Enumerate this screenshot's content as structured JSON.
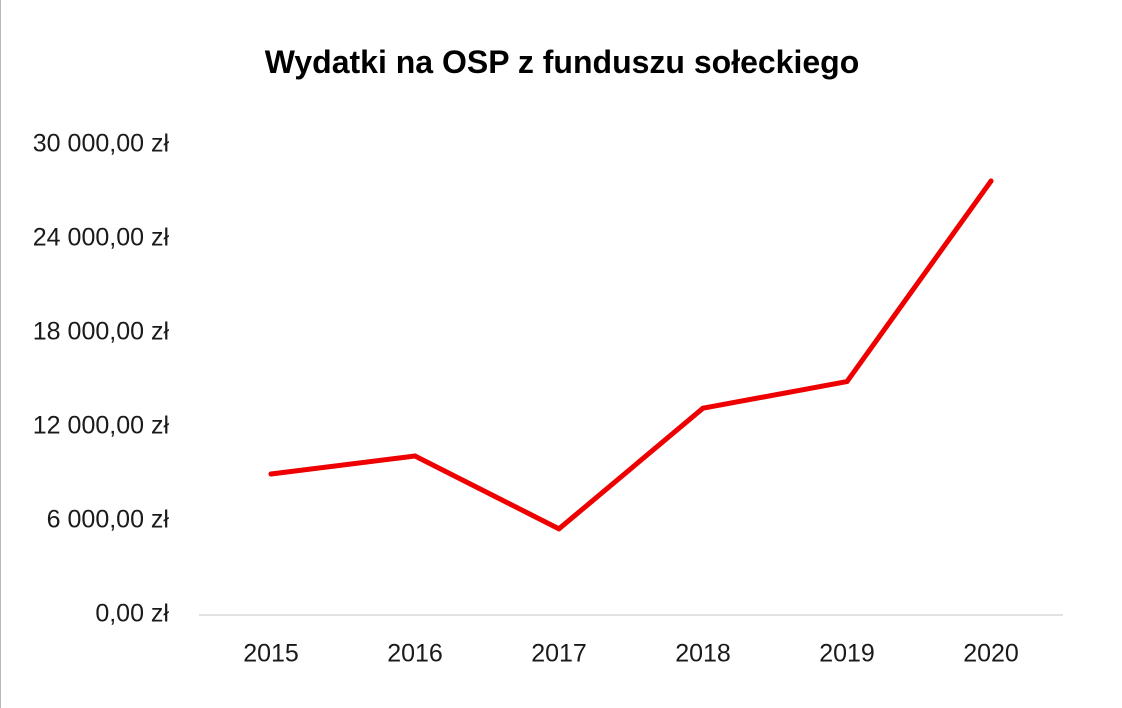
{
  "chart_data": {
    "type": "line",
    "title": "Wydatki na OSP z funduszu sołeckiego",
    "xlabel": "",
    "ylabel": "",
    "categories": [
      "2015",
      "2016",
      "2017",
      "2018",
      "2019",
      "2020"
    ],
    "series": [
      {
        "values": [
          9000,
          10150,
          5500,
          13200,
          14900,
          27700
        ]
      }
    ],
    "ylim": [
      0,
      30000
    ],
    "yticks": [
      0,
      6000,
      12000,
      18000,
      24000,
      30000
    ],
    "ytick_labels": [
      "0,00 zł",
      "6 000,00 zł",
      "12 000,00 zł",
      "18 000,00 zł",
      "24 000,00 zł",
      "30 000,00 zł"
    ],
    "grid": false,
    "legend": "none",
    "colors": {
      "line": "#ee0000",
      "axis": "#d9d9d9"
    }
  }
}
